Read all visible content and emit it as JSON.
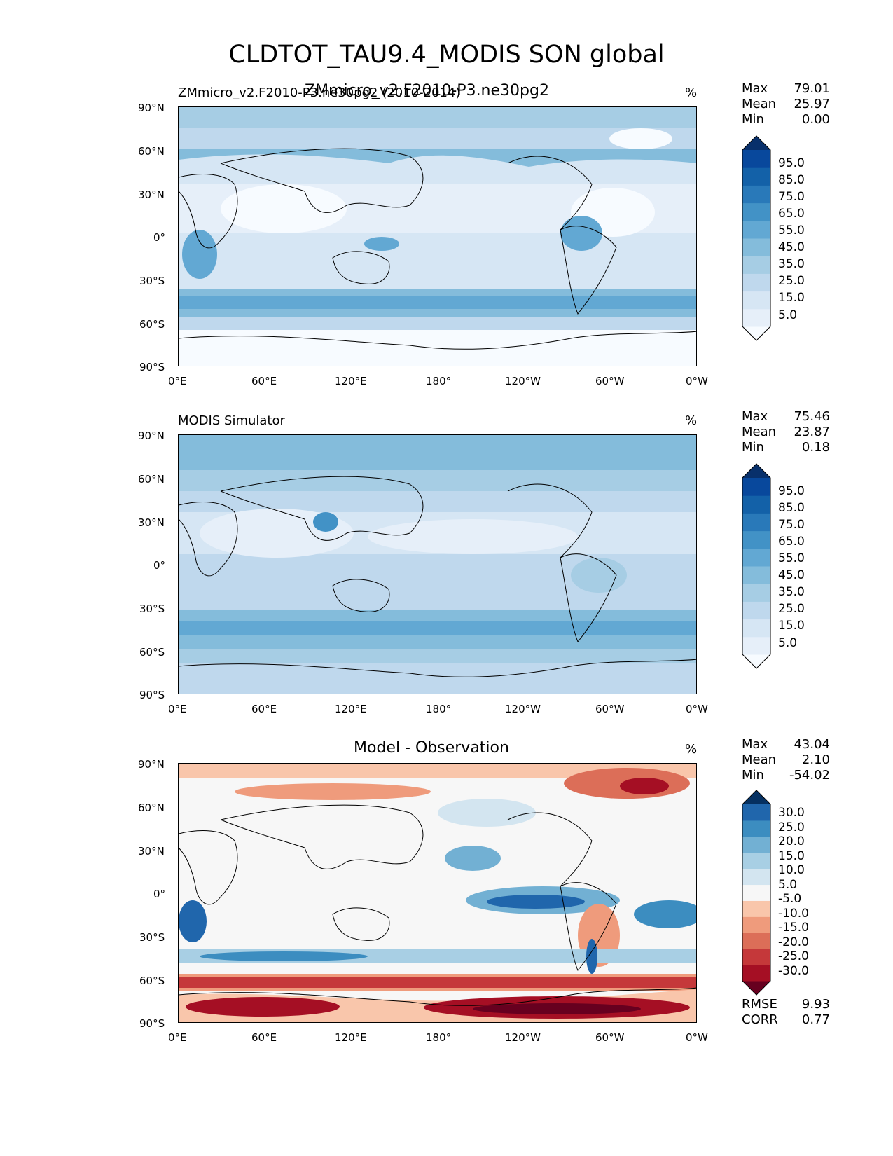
{
  "title": "CLDTOT_TAU9.4_MODIS SON global",
  "axes": {
    "lat_labels": [
      "90°N",
      "60°N",
      "30°N",
      "0°",
      "30°S",
      "60°S",
      "90°S"
    ],
    "lon_labels": [
      "0°E",
      "60°E",
      "120°E",
      "180°",
      "120°W",
      "60°W",
      "0°W"
    ]
  },
  "panels": [
    {
      "left_label": "ZMmicro_v2.F2010-P3.ne30pg2 (2010-2014)",
      "center_title": "ZMmicro_v2.F2010-P3.ne30pg2",
      "units": "%",
      "stats": [
        {
          "k": "Max",
          "v": "79.01"
        },
        {
          "k": "Mean",
          "v": "25.97"
        },
        {
          "k": "Min",
          "v": "0.00"
        }
      ],
      "colorbar": {
        "ticks": [
          "95.0",
          "85.0",
          "75.0",
          "65.0",
          "55.0",
          "45.0",
          "35.0",
          "25.0",
          "15.0",
          "5.0"
        ],
        "colors": [
          "#f7fbff",
          "#e6eff9",
          "#d6e6f4",
          "#bfd8ed",
          "#a6cde4",
          "#84bcdb",
          "#62a8d3",
          "#4292c6",
          "#2979b9",
          "#1361a8",
          "#08489c",
          "#08306b"
        ]
      }
    },
    {
      "left_label": "MODIS Simulator",
      "center_title": "",
      "units": "%",
      "stats": [
        {
          "k": "Max",
          "v": "75.46"
        },
        {
          "k": "Mean",
          "v": "23.87"
        },
        {
          "k": "Min",
          "v": "0.18"
        }
      ],
      "colorbar": {
        "ticks": [
          "95.0",
          "85.0",
          "75.0",
          "65.0",
          "55.0",
          "45.0",
          "35.0",
          "25.0",
          "15.0",
          "5.0"
        ],
        "colors": [
          "#f7fbff",
          "#e6eff9",
          "#d6e6f4",
          "#bfd8ed",
          "#a6cde4",
          "#84bcdb",
          "#62a8d3",
          "#4292c6",
          "#2979b9",
          "#1361a8",
          "#08489c",
          "#08306b"
        ]
      }
    },
    {
      "left_label": "",
      "center_title": "Model - Observation",
      "units": "%",
      "stats": [
        {
          "k": "Max",
          "v": "43.04"
        },
        {
          "k": "Mean",
          "v": "2.10"
        },
        {
          "k": "Min",
          "v": "-54.02"
        }
      ],
      "extra_stats": [
        {
          "k": "RMSE",
          "v": "9.93"
        },
        {
          "k": "CORR",
          "v": "0.77"
        }
      ],
      "colorbar": {
        "ticks": [
          "30.0",
          "25.0",
          "20.0",
          "15.0",
          "10.0",
          "5.0",
          "-5.0",
          "-10.0",
          "-15.0",
          "-20.0",
          "-25.0",
          "-30.0"
        ],
        "colors": [
          "#67001f",
          "#a50f24",
          "#c5383a",
          "#dc6e58",
          "#ef9b7c",
          "#f9c6ab",
          "#f7f7f7",
          "#d3e5f0",
          "#a8cfe4",
          "#72b0d3",
          "#3c8dc0",
          "#2066ac",
          "#053061"
        ]
      }
    }
  ]
}
